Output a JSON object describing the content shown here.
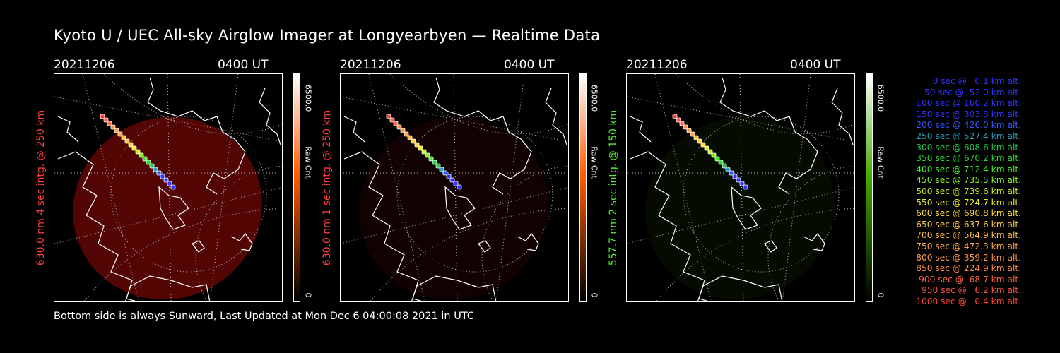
{
  "title": "Kyoto U / UEC All-sky Airglow Imager at Longyearbyen — Realtime Data",
  "footer": "Bottom side is always Sunward, Last Updated at Mon Dec  6 04:00:08 2021 in UTC",
  "panels": [
    {
      "date": "20211206",
      "time": "0400 UT",
      "side_label": "630.0 nm 4 sec intg. @ 250 km",
      "side_color": "#ff3b3b",
      "colorbar_max": "6500.0",
      "colorbar_unit": "Raw Cnt",
      "colorbar_min": "0",
      "colorbar_color": "#ff5a00",
      "glow_level": 0.55
    },
    {
      "date": "20211206",
      "time": "0400 UT",
      "side_label": "630.0 nm 1 sec intg. @ 250 km",
      "side_color": "#ff3b3b",
      "colorbar_max": "6500.0",
      "colorbar_unit": "Raw Cnt",
      "colorbar_min": "0",
      "colorbar_color": "#ff5a00",
      "glow_level": 0.12
    },
    {
      "date": "20211206",
      "time": "0400 UT",
      "side_label": "557.7 nm 2 sec intg. @ 150 km",
      "side_color": "#55ee33",
      "colorbar_max": "6500.0",
      "colorbar_unit": "Raw Cnt",
      "colorbar_min": "0",
      "colorbar_color": "#44aa00",
      "glow_level": 0.12
    }
  ],
  "legend": [
    {
      "text": "0 sec @   0.1 km alt.",
      "color": "#3333ff"
    },
    {
      "text": "50 sec @  52.0 km alt.",
      "color": "#3333ff"
    },
    {
      "text": "100 sec @ 160.2 km alt.",
      "color": "#3333ff"
    },
    {
      "text": "150 sec @ 303.8 km alt.",
      "color": "#3333ff"
    },
    {
      "text": "200 sec @ 426.0 km alt.",
      "color": "#3355ff"
    },
    {
      "text": "250 sec @ 527.4 km alt.",
      "color": "#2a9fbf"
    },
    {
      "text": "300 sec @ 608.6 km alt.",
      "color": "#22cc55"
    },
    {
      "text": "350 sec @ 670.2 km alt.",
      "color": "#22dd33"
    },
    {
      "text": "400 sec @ 712.4 km alt.",
      "color": "#44ee22"
    },
    {
      "text": "450 sec @ 735.5 km alt.",
      "color": "#88ee22"
    },
    {
      "text": "500 sec @ 739.6 km alt.",
      "color": "#ccee22"
    },
    {
      "text": "550 sec @ 724.7 km alt.",
      "color": "#eeee22"
    },
    {
      "text": "600 sec @ 690.8 km alt.",
      "color": "#ffdd33"
    },
    {
      "text": "650 sec @ 637.6 km alt.",
      "color": "#ffcc44"
    },
    {
      "text": "700 sec @ 564.9 km alt.",
      "color": "#ffbb44"
    },
    {
      "text": "750 sec @ 472.3 km alt.",
      "color": "#ffaa44"
    },
    {
      "text": "800 sec @ 359.2 km alt.",
      "color": "#ff9944"
    },
    {
      "text": "850 sec @ 224.9 km alt.",
      "color": "#ff8844"
    },
    {
      "text": "900 sec @  68.7 km alt.",
      "color": "#ff6644"
    },
    {
      "text": "950 sec @   6.2 km alt.",
      "color": "#ff5544"
    },
    {
      "text": "1000 sec @   0.4 km alt.",
      "color": "#ff4433"
    }
  ]
}
